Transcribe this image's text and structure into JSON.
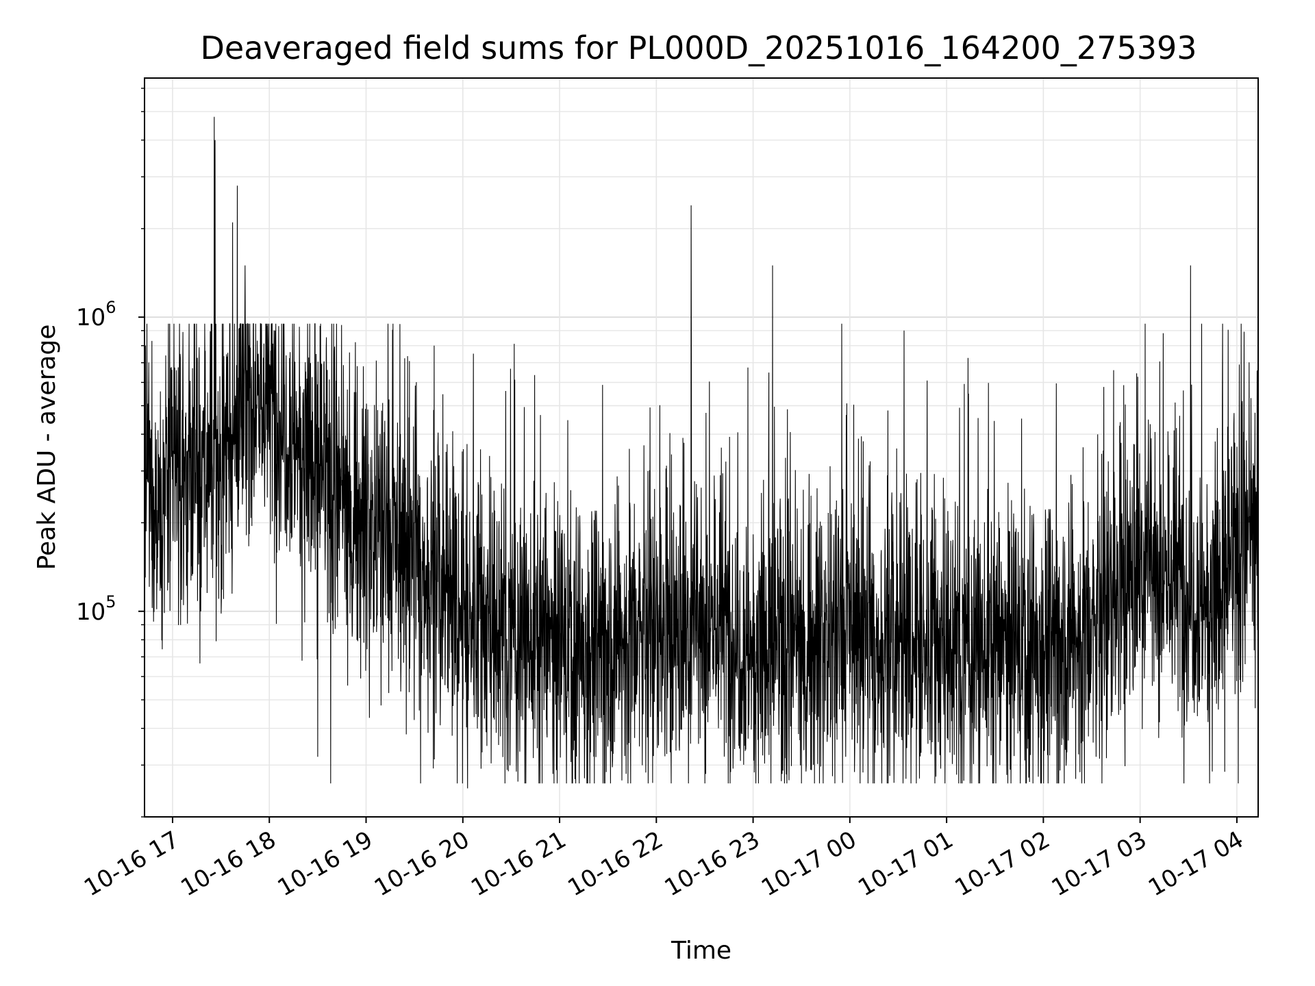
{
  "chart_data": {
    "type": "line",
    "title": "Deaveraged field sums for PL000D_20251016_164200_275393",
    "xlabel": "Time",
    "ylabel": "Peak ADU - average",
    "yscale": "log",
    "ylim": [
      20000,
      6500000
    ],
    "x_range_hours_since_2025_10_16_17_00": [
      -0.29,
      11.22
    ],
    "x_tick_labels": [
      "10-16 17",
      "10-16 18",
      "10-16 19",
      "10-16 20",
      "10-16 21",
      "10-16 22",
      "10-16 23",
      "10-17 00",
      "10-17 01",
      "10-17 02",
      "10-17 03",
      "10-17 04"
    ],
    "y_tick_labels": [
      {
        "base": "10",
        "exp": "5",
        "value": 100000
      },
      {
        "base": "10",
        "exp": "6",
        "value": 1000000
      }
    ],
    "grid": true,
    "line_color": "#000000",
    "series": [
      {
        "name": "deaveraged field sum",
        "baseline_profile": {
          "hours": [
            -0.29,
            0.0,
            0.5,
            0.8,
            1.0,
            1.3,
            1.6,
            1.9,
            2.5,
            3.0,
            4.0,
            5.0,
            5.6,
            6.2,
            7.0,
            7.3,
            8.5,
            9.5,
            10.0,
            10.8,
            11.22
          ],
          "values": [
            250000,
            260000,
            320000,
            550000,
            520000,
            400000,
            250000,
            220000,
            150000,
            95000,
            75000,
            80000,
            95000,
            70000,
            90000,
            75000,
            75000,
            80000,
            150000,
            110000,
            200000
          ]
        },
        "spikes": [
          {
            "hour": 0.43,
            "value": 4800000
          },
          {
            "hour": 0.44,
            "value": 4000000
          },
          {
            "hour": 0.67,
            "value": 2800000
          },
          {
            "hour": 0.62,
            "value": 2100000
          },
          {
            "hour": 0.75,
            "value": 1500000
          },
          {
            "hour": 5.36,
            "value": 2400000
          },
          {
            "hour": 6.2,
            "value": 1500000
          },
          {
            "hour": 10.52,
            "value": 1500000
          },
          {
            "hour": 7.56,
            "value": 900000
          }
        ],
        "dips": [
          {
            "hour": 3.05,
            "value": 25000
          },
          {
            "hour": 7.55,
            "value": 26000
          },
          {
            "hour": 7.72,
            "value": 27000
          },
          {
            "hour": 6.3,
            "value": 28000
          },
          {
            "hour": 6.82,
            "value": 27500
          },
          {
            "hour": 1.5,
            "value": 32000
          },
          {
            "hour": 8.55,
            "value": 30000
          }
        ]
      }
    ]
  }
}
